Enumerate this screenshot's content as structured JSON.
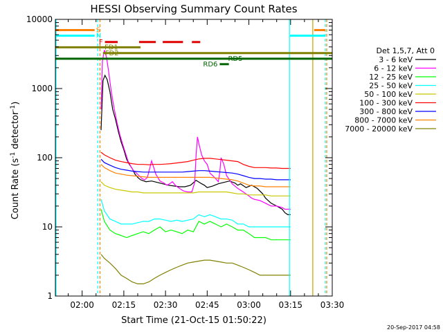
{
  "chart_data": {
    "type": "line",
    "title": "HESSI Observing Summary Count Rates",
    "xlabel": "Start Time (21-Oct-15 01:50:22)",
    "ylabel_prefix": "Count Rate (s",
    "ylabel_sup1": "-1",
    "ylabel_mid": " detector",
    "ylabel_sup2": "-1",
    "ylabel_suffix": ")",
    "y_scale": "log",
    "ylim": [
      1,
      10000
    ],
    "xlim_min": [
      110.37,
      210
    ],
    "x_ticks": [
      {
        "label": "02:00",
        "min": 120
      },
      {
        "label": "02:15",
        "min": 135
      },
      {
        "label": "02:30",
        "min": 150
      },
      {
        "label": "02:45",
        "min": 165
      },
      {
        "label": "03:00",
        "min": 180
      },
      {
        "label": "03:15",
        "min": 195
      },
      {
        "label": "03:30",
        "min": 210
      }
    ],
    "y_ticks": [
      {
        "label": "1",
        "value": 1
      },
      {
        "label": "10",
        "value": 10
      },
      {
        "label": "100",
        "value": 100
      },
      {
        "label": "1000",
        "value": 1000
      },
      {
        "label": "10000",
        "value": 10000
      }
    ],
    "legend_title": "Det 1,5,7, Att 0",
    "legend_placement": "right",
    "series": [
      {
        "name": "3 - 6 keV",
        "color": "#000000",
        "x": [
          126.8,
          127.5,
          128.2,
          129.0,
          130.0,
          131.0,
          132.0,
          133.0,
          134.0,
          135.0,
          136.0,
          137.0,
          138.0,
          139.0,
          140.0,
          141.0,
          143.0,
          145.0,
          147.0,
          149.0,
          151.0,
          153.0,
          155.0,
          157.0,
          159.0,
          161.0,
          163.0,
          164.0,
          165.0,
          167.0,
          169.0,
          171.0,
          173.0,
          175.0,
          176.0,
          177.0,
          179.0,
          181.0,
          183.0,
          185.0,
          186.0,
          188.0,
          190.0,
          192.0,
          193.0,
          194.0,
          195.0
        ],
        "y": [
          250,
          1300,
          1550,
          1350,
          900,
          500,
          360,
          240,
          170,
          130,
          95,
          80,
          70,
          58,
          52,
          48,
          45,
          46,
          44,
          42,
          40,
          39,
          38,
          38,
          40,
          47,
          42,
          40,
          37,
          39,
          42,
          44,
          46,
          43,
          40,
          42,
          37,
          40,
          36,
          30,
          26,
          22,
          20,
          18,
          16,
          15,
          15
        ]
      },
      {
        "name": "6 - 12 keV",
        "color": "#ff00ff",
        "x": [
          126.8,
          127.3,
          128.0,
          128.8,
          129.5,
          130.5,
          131.5,
          132.5,
          133.5,
          134.5,
          135.5,
          136.5,
          137.5,
          138.5,
          139.5,
          140.5,
          141.5,
          142.5,
          143.5,
          145.0,
          146.5,
          148.0,
          149.5,
          150.5,
          151.5,
          152.5,
          153.5,
          155.0,
          156.5,
          158.0,
          159.5,
          160.5,
          161.0,
          161.5,
          162.0,
          163.0,
          164.0,
          165.0,
          166.0,
          167.0,
          168.0,
          169.0,
          169.5,
          170.0,
          171.0,
          172.0,
          173.0,
          174.0,
          176.0,
          178.0,
          180.0,
          181.0,
          182.0,
          184.0,
          186.0,
          188.0,
          190.0,
          192.0,
          193.0,
          194.0,
          195.0
        ],
        "y": [
          500,
          2500,
          3600,
          2800,
          1800,
          900,
          520,
          330,
          220,
          160,
          120,
          90,
          75,
          65,
          60,
          55,
          50,
          48,
          52,
          90,
          58,
          46,
          43,
          40,
          42,
          45,
          40,
          36,
          33,
          32,
          32,
          44,
          110,
          200,
          160,
          110,
          90,
          80,
          60,
          55,
          50,
          45,
          60,
          100,
          80,
          55,
          48,
          42,
          36,
          32,
          28,
          26,
          25,
          24,
          22,
          20,
          20,
          19,
          18,
          18,
          18
        ]
      },
      {
        "name": "12 - 25 keV",
        "color": "#00ff00",
        "x": [
          126.8,
          128.0,
          130.0,
          132.0,
          134.0,
          136.0,
          138.0,
          140.0,
          142.0,
          144.0,
          146.0,
          148.0,
          150.0,
          152.0,
          154.0,
          156.0,
          158.0,
          160.0,
          162.0,
          164.0,
          166.0,
          168.0,
          170.0,
          172.0,
          174.0,
          176.0,
          178.0,
          180.0,
          182.0,
          184.0,
          186.0,
          188.0,
          190.0,
          192.0,
          194.0,
          195.0
        ],
        "y": [
          18,
          12,
          9,
          8,
          7.5,
          7,
          7.5,
          8,
          8.5,
          8,
          9,
          10,
          8.5,
          9,
          8.5,
          8,
          9,
          8.5,
          12,
          11,
          12,
          11,
          10,
          11,
          10,
          9,
          9,
          8,
          7,
          7,
          7,
          6.5,
          6.5,
          6.5,
          6.5,
          6.5
        ]
      },
      {
        "name": "25 - 50 keV",
        "color": "#00ffff",
        "x": [
          126.8,
          128.0,
          130.0,
          132.0,
          134.0,
          136.0,
          138.0,
          140.0,
          142.0,
          144.0,
          146.0,
          148.0,
          150.0,
          152.0,
          154.0,
          156.0,
          158.0,
          160.0,
          162.0,
          164.0,
          166.0,
          168.0,
          170.0,
          172.0,
          174.0,
          176.0,
          178.0,
          180.0,
          182.0,
          184.0,
          186.0,
          188.0,
          190.0,
          192.0,
          194.0,
          195.0
        ],
        "y": [
          25,
          17,
          13,
          12,
          11,
          11,
          11,
          11.5,
          12,
          12,
          13,
          13,
          12.5,
          12,
          12.5,
          12,
          12.5,
          13,
          15,
          14,
          15,
          14,
          13,
          13,
          12.5,
          11,
          11,
          10,
          10,
          10,
          10,
          10,
          10,
          10,
          10,
          10
        ]
      },
      {
        "name": "50 - 100 keV",
        "color": "#c8c800",
        "x": [
          126.8,
          128.0,
          130.0,
          132.0,
          134.0,
          136.0,
          138.0,
          140.0,
          142.0,
          144.0,
          146.0,
          148.0,
          150.0,
          152.0,
          154.0,
          156.0,
          158.0,
          160.0,
          162.0,
          164.0,
          166.0,
          168.0,
          170.0,
          172.0,
          174.0,
          176.0,
          178.0,
          180.0,
          182.0,
          184.0,
          186.0,
          188.0,
          190.0,
          192.0,
          194.0,
          195.0
        ],
        "y": [
          45,
          40,
          37,
          35,
          34,
          33,
          32,
          32,
          31,
          31,
          31,
          31,
          31,
          31,
          31,
          31,
          31,
          31,
          32,
          32,
          32,
          32,
          32,
          32,
          31,
          30,
          30,
          29,
          29,
          29,
          29,
          28,
          28,
          28,
          28,
          28
        ]
      },
      {
        "name": "100 - 300 keV",
        "color": "#ff0000",
        "x": [
          126.8,
          128.0,
          130.0,
          132.0,
          134.0,
          136.0,
          138.0,
          140.0,
          142.0,
          144.0,
          146.0,
          148.0,
          150.0,
          152.0,
          154.0,
          156.0,
          158.0,
          160.0,
          162.0,
          164.0,
          166.0,
          168.0,
          170.0,
          172.0,
          174.0,
          176.0,
          178.0,
          180.0,
          182.0,
          184.0,
          186.0,
          188.0,
          190.0,
          192.0,
          194.0,
          195.0
        ],
        "y": [
          120,
          110,
          100,
          92,
          88,
          85,
          82,
          80,
          80,
          79,
          80,
          80,
          81,
          82,
          84,
          86,
          88,
          92,
          96,
          98,
          98,
          96,
          94,
          92,
          90,
          88,
          80,
          75,
          72,
          72,
          72,
          71,
          71,
          70,
          70,
          70
        ]
      },
      {
        "name": "300 - 800 keV",
        "color": "#0000ff",
        "x": [
          126.8,
          128.0,
          130.0,
          132.0,
          134.0,
          136.0,
          138.0,
          140.0,
          142.0,
          144.0,
          146.0,
          148.0,
          150.0,
          152.0,
          154.0,
          156.0,
          158.0,
          160.0,
          162.0,
          164.0,
          166.0,
          168.0,
          170.0,
          172.0,
          174.0,
          176.0,
          178.0,
          180.0,
          182.0,
          184.0,
          186.0,
          188.0,
          190.0,
          192.0,
          194.0,
          195.0
        ],
        "y": [
          95,
          85,
          78,
          72,
          68,
          66,
          64,
          63,
          62,
          62,
          62,
          62,
          62,
          62,
          62,
          62,
          63,
          64,
          65,
          65,
          64,
          63,
          62,
          61,
          60,
          58,
          55,
          52,
          50,
          50,
          49,
          49,
          48,
          48,
          48,
          48
        ]
      },
      {
        "name": "800 - 7000 keV",
        "color": "#ff8000",
        "x": [
          126.8,
          128.0,
          130.0,
          132.0,
          134.0,
          136.0,
          138.0,
          140.0,
          142.0,
          144.0,
          146.0,
          148.0,
          150.0,
          152.0,
          154.0,
          156.0,
          158.0,
          160.0,
          162.0,
          164.0,
          166.0,
          168.0,
          170.0,
          172.0,
          174.0,
          176.0,
          178.0,
          180.0,
          182.0,
          184.0,
          186.0,
          188.0,
          190.0,
          192.0,
          194.0,
          195.0
        ],
        "y": [
          80,
          72,
          65,
          60,
          58,
          56,
          55,
          54,
          53,
          52,
          52,
          52,
          52,
          52,
          52,
          52,
          52,
          52,
          52,
          52,
          52,
          51,
          50,
          49,
          48,
          46,
          43,
          40,
          39,
          39,
          38,
          38,
          38,
          38,
          38,
          38
        ]
      },
      {
        "name": "7000 - 20000 keV",
        "color": "#808000",
        "x": [
          126.8,
          128.0,
          130.0,
          132.0,
          134.0,
          136.0,
          138.0,
          140.0,
          142.0,
          144.0,
          146.0,
          148.0,
          150.0,
          152.0,
          154.0,
          156.0,
          158.0,
          160.0,
          162.0,
          164.0,
          166.0,
          168.0,
          170.0,
          172.0,
          174.0,
          176.0,
          178.0,
          180.0,
          182.0,
          184.0,
          186.0,
          188.0,
          190.0,
          192.0,
          194.0,
          195.0
        ],
        "y": [
          4,
          3.5,
          3,
          2.5,
          2,
          1.8,
          1.6,
          1.5,
          1.5,
          1.6,
          1.8,
          2,
          2.2,
          2.4,
          2.6,
          2.8,
          3,
          3.1,
          3.2,
          3.3,
          3.3,
          3.2,
          3.1,
          3,
          3,
          2.8,
          2.6,
          2.4,
          2.2,
          2,
          2,
          2,
          2,
          2,
          2,
          2
        ]
      }
    ],
    "flag_bars": [
      {
        "label": "S",
        "color": "#ff8000",
        "value": 7000,
        "segments": [
          [
            110.37,
            124.5
          ],
          [
            203.5,
            207.5
          ]
        ]
      },
      {
        "label": "N",
        "color": "#00ffff",
        "value": 5800,
        "segments": [
          [
            110.37,
            124.5
          ],
          [
            194.8,
            207.5
          ]
        ]
      },
      {
        "label": "F",
        "color": "#e00000",
        "value": 4700,
        "segments": [
          [
            128.2,
            132.8
          ],
          [
            140.5,
            146.5
          ],
          [
            149.0,
            156.3
          ],
          [
            159.5,
            162.5
          ]
        ]
      },
      {
        "label": "FD1",
        "color": "#808000",
        "value": 3950,
        "segments": [
          [
            110.37,
            141.0
          ]
        ]
      },
      {
        "label": "FD2",
        "color": "#808000",
        "value": 3250,
        "segments": [
          [
            127.5,
            210.0
          ]
        ]
      },
      {
        "label": "RD5",
        "color": "#006400",
        "value": 2700,
        "segments": [
          [
            110.37,
            210.0
          ]
        ]
      },
      {
        "label": "RD6",
        "color": "#006400",
        "value": 2250,
        "segments": [
          [
            169.5,
            172.8
          ]
        ]
      }
    ],
    "vertical_lines": [
      {
        "color": "#00ffff",
        "style": "solid",
        "x": 110.6
      },
      {
        "color": "#00ffff",
        "style": "dashed",
        "x": 125.6
      },
      {
        "color": "#ff8000",
        "style": "dashed",
        "x": 126.4
      },
      {
        "color": "#00ffff",
        "style": "solid",
        "x": 194.6
      },
      {
        "color": "#c8a000",
        "style": "solid",
        "x": 203.0
      },
      {
        "color": "#00ffff",
        "style": "dashed",
        "x": 207.5
      },
      {
        "color": "#ff8000",
        "style": "dashed",
        "x": 208.0
      }
    ]
  },
  "timestamp": "20-Sep-2017 04:58"
}
